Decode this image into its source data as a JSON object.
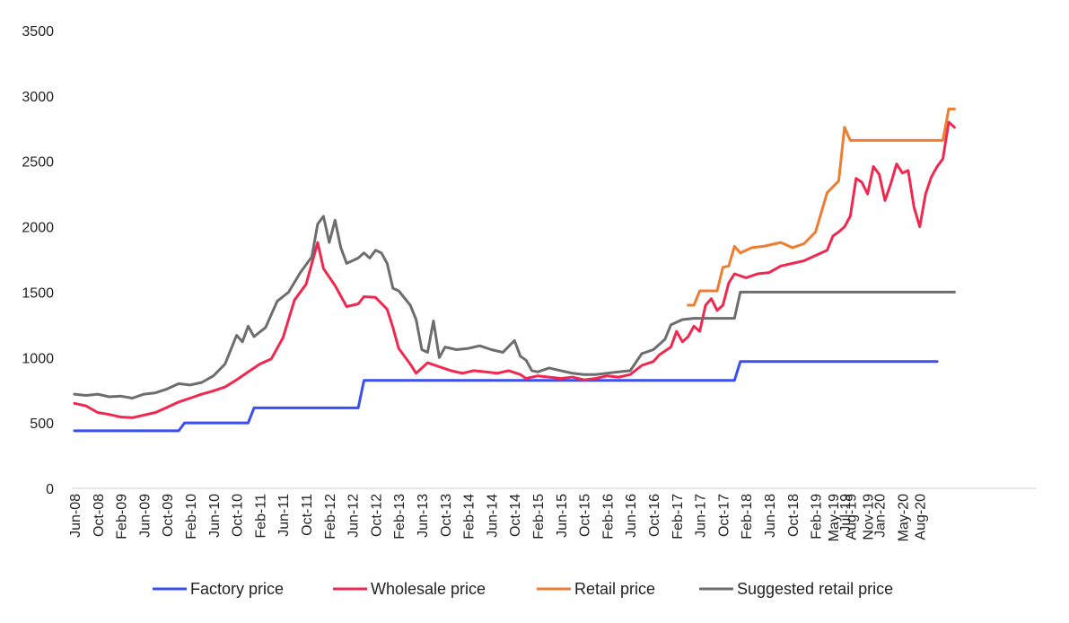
{
  "chart_data": {
    "type": "line",
    "title": "",
    "xlabel": "",
    "ylabel": "",
    "ylim": [
      0,
      3500
    ],
    "yticks": [
      0,
      500,
      1000,
      1500,
      2000,
      2500,
      3000,
      3500
    ],
    "grid": false,
    "legend_position": "bottom",
    "x_tick_labels": [
      "Jun-08",
      "Oct-08",
      "Feb-09",
      "Jun-09",
      "Oct-09",
      "Feb-10",
      "Jun-10",
      "Oct-10",
      "Feb-11",
      "Jun-11",
      "Oct-11",
      "Feb-12",
      "Jun-12",
      "Oct-12",
      "Feb-13",
      "Jun-13",
      "Oct-13",
      "Feb-14",
      "Jun-14",
      "Oct-14",
      "Feb-15",
      "Jun-15",
      "Oct-15",
      "Feb-16",
      "Jun-16",
      "Oct-16",
      "Feb-17",
      "Jun-17",
      "Oct-17",
      "Feb-18",
      "Jun-18",
      "Oct-18",
      "Feb-19",
      "May-19",
      "Jul-19",
      "Aug-19",
      "Nov-19",
      "Jan-20",
      "May-20",
      "Aug-20"
    ],
    "x_start": "Jun-08",
    "x_end": "Nov-20",
    "series": [
      {
        "name": "Factory price",
        "color": "#3b4ef2",
        "points": [
          [
            "Jun-08",
            440
          ],
          [
            "Dec-09",
            440
          ],
          [
            "Jan-10",
            500
          ],
          [
            "Dec-10",
            500
          ],
          [
            "Jan-11",
            615
          ],
          [
            "Jul-12",
            615
          ],
          [
            "Aug-12",
            825
          ],
          [
            "Dec-17",
            825
          ],
          [
            "Jan-18",
            970
          ],
          [
            "Nov-20",
            970
          ]
        ]
      },
      {
        "name": "Wholesale price",
        "color": "#f0284f",
        "points": [
          [
            "Jun-08",
            650
          ],
          [
            "Aug-08",
            630
          ],
          [
            "Oct-08",
            580
          ],
          [
            "Dec-08",
            565
          ],
          [
            "Feb-09",
            545
          ],
          [
            "Apr-09",
            540
          ],
          [
            "Jun-09",
            560
          ],
          [
            "Aug-09",
            580
          ],
          [
            "Oct-09",
            620
          ],
          [
            "Dec-09",
            660
          ],
          [
            "Feb-10",
            690
          ],
          [
            "Apr-10",
            720
          ],
          [
            "Jun-10",
            745
          ],
          [
            "Aug-10",
            775
          ],
          [
            "Oct-10",
            830
          ],
          [
            "Dec-10",
            890
          ],
          [
            "Feb-11",
            950
          ],
          [
            "Apr-11",
            990
          ],
          [
            "Jun-11",
            1150
          ],
          [
            "Aug-11",
            1440
          ],
          [
            "Oct-11",
            1560
          ],
          [
            "Dec-11",
            1880
          ],
          [
            "Jan-12",
            1680
          ],
          [
            "Mar-12",
            1550
          ],
          [
            "May-12",
            1390
          ],
          [
            "Jul-12",
            1410
          ],
          [
            "Aug-12",
            1465
          ],
          [
            "Oct-12",
            1460
          ],
          [
            "Dec-12",
            1370
          ],
          [
            "Jan-13",
            1230
          ],
          [
            "Feb-13",
            1070
          ],
          [
            "Apr-13",
            950
          ],
          [
            "May-13",
            880
          ],
          [
            "Jul-13",
            960
          ],
          [
            "Sep-13",
            930
          ],
          [
            "Nov-13",
            900
          ],
          [
            "Jan-14",
            880
          ],
          [
            "Mar-14",
            900
          ],
          [
            "May-14",
            890
          ],
          [
            "Jul-14",
            880
          ],
          [
            "Sep-14",
            900
          ],
          [
            "Nov-14",
            870
          ],
          [
            "Dec-14",
            840
          ],
          [
            "Feb-15",
            860
          ],
          [
            "Apr-15",
            850
          ],
          [
            "Jun-15",
            840
          ],
          [
            "Aug-15",
            850
          ],
          [
            "Oct-15",
            830
          ],
          [
            "Dec-15",
            840
          ],
          [
            "Feb-16",
            860
          ],
          [
            "Apr-16",
            850
          ],
          [
            "Jun-16",
            870
          ],
          [
            "Aug-16",
            940
          ],
          [
            "Oct-16",
            970
          ],
          [
            "Nov-16",
            1020
          ],
          [
            "Jan-17",
            1080
          ],
          [
            "Feb-17",
            1200
          ],
          [
            "Mar-17",
            1120
          ],
          [
            "Apr-17",
            1160
          ],
          [
            "May-17",
            1240
          ],
          [
            "Jun-17",
            1200
          ],
          [
            "Jul-17",
            1400
          ],
          [
            "Aug-17",
            1450
          ],
          [
            "Sep-17",
            1360
          ],
          [
            "Oct-17",
            1400
          ],
          [
            "Nov-17",
            1570
          ],
          [
            "Dec-17",
            1640
          ],
          [
            "Feb-18",
            1610
          ],
          [
            "Apr-18",
            1640
          ],
          [
            "Jun-18",
            1650
          ],
          [
            "Aug-18",
            1700
          ],
          [
            "Oct-18",
            1720
          ],
          [
            "Dec-18",
            1740
          ],
          [
            "Feb-19",
            1780
          ],
          [
            "Apr-19",
            1820
          ],
          [
            "May-19",
            1930
          ],
          [
            "Jun-19",
            1960
          ],
          [
            "Jul-19",
            2000
          ],
          [
            "Aug-19",
            2080
          ],
          [
            "Sep-19",
            2370
          ],
          [
            "Oct-19",
            2340
          ],
          [
            "Nov-19",
            2250
          ],
          [
            "Dec-19",
            2460
          ],
          [
            "Jan-20",
            2400
          ],
          [
            "Feb-20",
            2200
          ],
          [
            "Mar-20",
            2330
          ],
          [
            "Apr-20",
            2480
          ],
          [
            "May-20",
            2410
          ],
          [
            "Jun-20",
            2430
          ],
          [
            "Jul-20",
            2150
          ],
          [
            "Aug-20",
            2000
          ],
          [
            "Sep-20",
            2250
          ],
          [
            "Oct-20",
            2380
          ],
          [
            "Nov-20",
            2460
          ],
          [
            "Dec-20",
            2520
          ],
          [
            "Jan-21",
            2800
          ],
          [
            "Feb-21",
            2760
          ]
        ]
      },
      {
        "name": "Retail price",
        "color": "#ed7d31",
        "points": [
          [
            "Apr-17",
            1400
          ],
          [
            "May-17",
            1400
          ],
          [
            "Jun-17",
            1510
          ],
          [
            "Sep-17",
            1510
          ],
          [
            "Oct-17",
            1690
          ],
          [
            "Nov-17",
            1700
          ],
          [
            "Dec-17",
            1850
          ],
          [
            "Jan-18",
            1800
          ],
          [
            "Mar-18",
            1840
          ],
          [
            "May-18",
            1850
          ],
          [
            "Aug-18",
            1880
          ],
          [
            "Oct-18",
            1840
          ],
          [
            "Dec-18",
            1870
          ],
          [
            "Feb-19",
            1960
          ],
          [
            "Mar-19",
            2110
          ],
          [
            "Apr-19",
            2260
          ],
          [
            "Jun-19",
            2350
          ],
          [
            "Jul-19",
            2760
          ],
          [
            "Aug-19",
            2660
          ],
          [
            "Dec-20",
            2660
          ],
          [
            "Jan-21",
            2900
          ],
          [
            "Feb-21",
            2900
          ]
        ]
      },
      {
        "name": "Suggested retail price",
        "color": "#6d6d6d",
        "points": [
          [
            "Jun-08",
            720
          ],
          [
            "Aug-08",
            710
          ],
          [
            "Oct-08",
            720
          ],
          [
            "Dec-08",
            700
          ],
          [
            "Feb-09",
            705
          ],
          [
            "Apr-09",
            690
          ],
          [
            "Jun-09",
            720
          ],
          [
            "Aug-09",
            730
          ],
          [
            "Oct-09",
            760
          ],
          [
            "Dec-09",
            800
          ],
          [
            "Feb-10",
            790
          ],
          [
            "Apr-10",
            810
          ],
          [
            "Jun-10",
            860
          ],
          [
            "Aug-10",
            950
          ],
          [
            "Oct-10",
            1170
          ],
          [
            "Nov-10",
            1120
          ],
          [
            "Dec-10",
            1240
          ],
          [
            "Jan-11",
            1160
          ],
          [
            "Mar-11",
            1230
          ],
          [
            "May-11",
            1430
          ],
          [
            "Jul-11",
            1500
          ],
          [
            "Sep-11",
            1650
          ],
          [
            "Nov-11",
            1770
          ],
          [
            "Dec-11",
            2020
          ],
          [
            "Jan-12",
            2080
          ],
          [
            "Feb-12",
            1880
          ],
          [
            "Mar-12",
            2050
          ],
          [
            "Apr-12",
            1840
          ],
          [
            "May-12",
            1720
          ],
          [
            "Jul-12",
            1760
          ],
          [
            "Aug-12",
            1800
          ],
          [
            "Sep-12",
            1760
          ],
          [
            "Oct-12",
            1820
          ],
          [
            "Nov-12",
            1800
          ],
          [
            "Dec-12",
            1720
          ],
          [
            "Jan-13",
            1530
          ],
          [
            "Feb-13",
            1510
          ],
          [
            "Apr-13",
            1400
          ],
          [
            "May-13",
            1290
          ],
          [
            "Jun-13",
            1060
          ],
          [
            "Jul-13",
            1040
          ],
          [
            "Aug-13",
            1280
          ],
          [
            "Sep-13",
            1000
          ],
          [
            "Oct-13",
            1080
          ],
          [
            "Dec-13",
            1060
          ],
          [
            "Feb-14",
            1070
          ],
          [
            "Apr-14",
            1090
          ],
          [
            "Jun-14",
            1060
          ],
          [
            "Aug-14",
            1040
          ],
          [
            "Oct-14",
            1130
          ],
          [
            "Nov-14",
            1010
          ],
          [
            "Dec-14",
            980
          ],
          [
            "Jan-15",
            900
          ],
          [
            "Feb-15",
            890
          ],
          [
            "Apr-15",
            920
          ],
          [
            "Jun-15",
            900
          ],
          [
            "Aug-15",
            880
          ],
          [
            "Oct-15",
            870
          ],
          [
            "Dec-15",
            870
          ],
          [
            "Feb-16",
            880
          ],
          [
            "Apr-16",
            890
          ],
          [
            "Jun-16",
            900
          ],
          [
            "Aug-16",
            1030
          ],
          [
            "Oct-16",
            1060
          ],
          [
            "Dec-16",
            1140
          ],
          [
            "Jan-17",
            1250
          ],
          [
            "Mar-17",
            1290
          ],
          [
            "May-17",
            1300
          ],
          [
            "Dec-17",
            1300
          ],
          [
            "Jan-18",
            1500
          ],
          [
            "Feb-21",
            1500
          ]
        ]
      }
    ]
  }
}
